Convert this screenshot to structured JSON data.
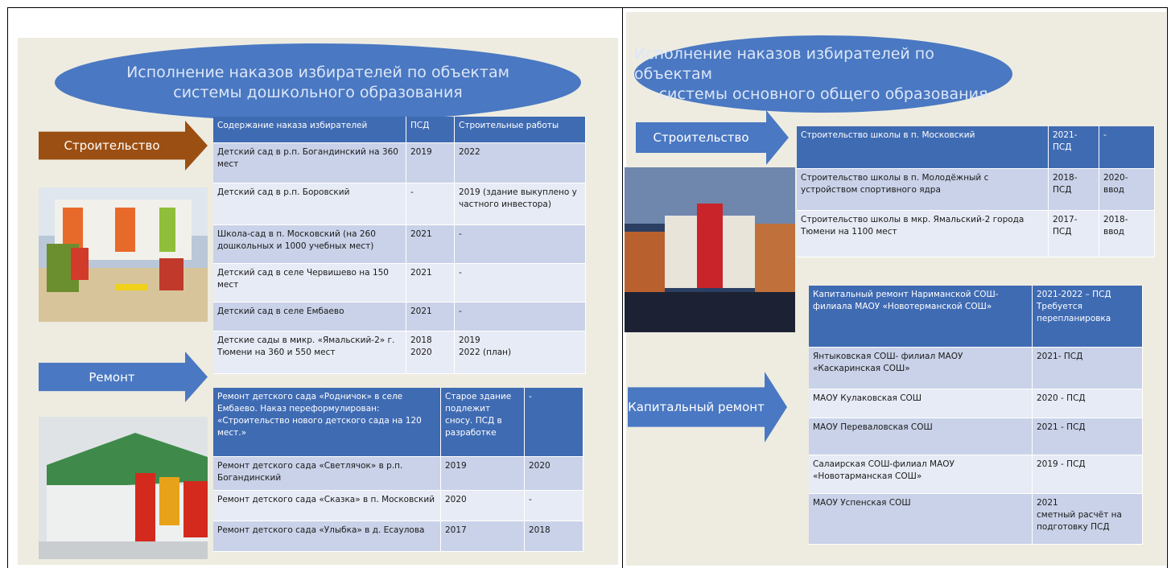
{
  "slides": [
    {
      "title": [
        "Исполнение наказов избирателей по объектам",
        "системы дошкольного образования"
      ],
      "arrows": [
        "Строительство",
        "Ремонт"
      ],
      "tables": [
        {
          "header": [
            "Содержание наказа избирателей",
            "ПСД",
            "Строительные работы"
          ],
          "rows": [
            [
              "Детский сад в р.п. Богандинский на 360 мест",
              "2019",
              "2022"
            ],
            [
              "Детский сад в р.п. Боровский",
              "-",
              "2019 (здание выкуплено у частного инвестора)"
            ],
            [
              "Школа-сад в п. Московский (на 260 дошкольных и 1000 учебных мест)",
              "2021",
              "-"
            ],
            [
              "Детский сад в селе Червишево на 150 мест",
              "2021",
              "-"
            ],
            [
              "Детский сад в селе Ембаево",
              "2021",
              "-"
            ],
            [
              "Детские сады в микр. «Ямальский-2» г. Тюмени на 360 и 550 мест",
              "2018\n2020",
              "2019\n2022 (план)"
            ]
          ]
        },
        {
          "header": [
            "Ремонт детского сада «Родничок» в селе Ембаево. Наказ переформулирован: «Строительство нового детского сада на 120 мест.»",
            "Старое здание подлежит сносу. ПСД в разработке",
            "-"
          ],
          "rows": [
            [
              "Ремонт детского сада «Светлячок» в р.п. Богандинский",
              "2019",
              "2020"
            ],
            [
              "Ремонт детского сада «Сказка» в п. Московский",
              "2020",
              "-"
            ],
            [
              "Ремонт детского сада «Улыбка» в д. Есаулова",
              "2017",
              "2018"
            ]
          ]
        }
      ]
    },
    {
      "title": [
        "Исполнение наказов избирателей по объектам",
        "системы основного общего образования"
      ],
      "arrows": [
        "Строительство",
        "Капитальный ремонт"
      ],
      "tables": [
        {
          "header": [
            "Строительство школы в п. Московский",
            "2021-\nПСД",
            "-"
          ],
          "rows": [
            [
              "Строительство школы в п. Молодёжный с устройством спортивного ядра",
              "2018-\nПСД",
              "2020-\nввод"
            ],
            [
              "Строительство школы в мкр. Ямальский-2 города Тюмени на 1100 мест",
              "2017-\nПСД",
              "2018-\nввод"
            ]
          ]
        },
        {
          "header": [
            "Капитальный ремонт Нариманской СОШ-филиала МАОУ «Новотерманской СОШ»",
            "2021-2022 – ПСД\nТребуется перепланировка"
          ],
          "rows": [
            [
              "Янтыковская СОШ- филиал МАОУ «Каскаринская СОШ»",
              "2021- ПСД"
            ],
            [
              "МАОУ Кулаковская СОШ",
              "2020 - ПСД"
            ],
            [
              "МАОУ Переваловская СОШ",
              "2021 - ПСД"
            ],
            [
              "Салаирская СОШ-филиал МАОУ «Новотарманская СОШ»",
              "2019 - ПСД"
            ],
            [
              "МАОУ Успенская СОШ",
              "2021\nсметный расчёт на подготовку ПСД"
            ]
          ]
        }
      ]
    }
  ]
}
